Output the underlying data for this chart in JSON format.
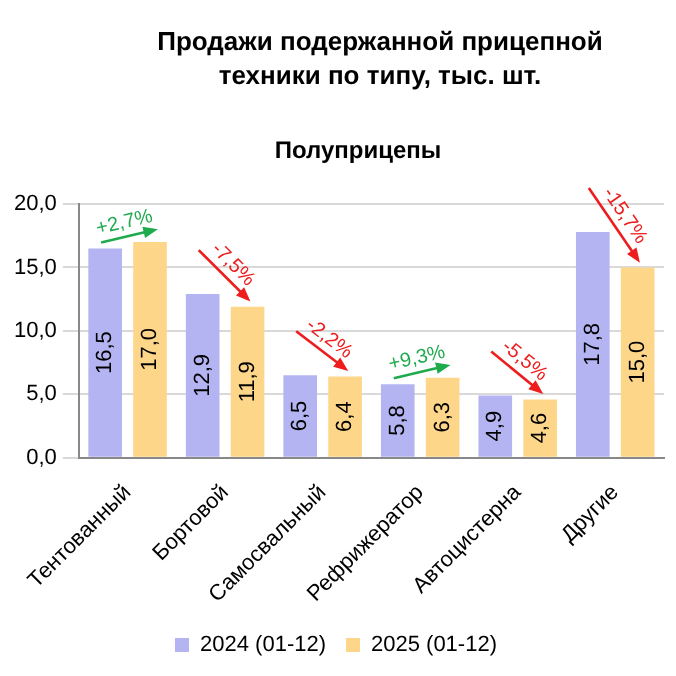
{
  "chart_data": {
    "type": "bar",
    "title": "Продажи подержанной прицепной техники по типу, тыс. шт.",
    "subtitle": "Полуприцепы",
    "categories": [
      "Тентованный",
      "Бортовой",
      "Самосвальный",
      "Рефрижератор",
      "Автоцистерна",
      "Другие"
    ],
    "series": [
      {
        "name": "2024 (01-12)",
        "color": "#b4b4f2",
        "values": [
          16.5,
          12.9,
          6.5,
          5.8,
          4.9,
          17.8
        ],
        "value_labels": [
          "16,5",
          "12,9",
          "6,5",
          "5,8",
          "4,9",
          "17,8"
        ]
      },
      {
        "name": "2025 (01-12)",
        "color": "#fdd68a",
        "values": [
          17.0,
          11.9,
          6.4,
          6.3,
          4.6,
          15.0
        ],
        "value_labels": [
          "17,0",
          "11,9",
          "6,4",
          "6,3",
          "4,6",
          "15,0"
        ]
      }
    ],
    "annotations": [
      "+2,7%",
      "-7,5%",
      "-2,2%",
      "+9,3%",
      "-5,5%",
      "-15,7%"
    ],
    "ylim": [
      0,
      20
    ],
    "yticks": [
      {
        "value": 0,
        "label": "0,0"
      },
      {
        "value": 5,
        "label": "5,0"
      },
      {
        "value": 10,
        "label": "10,0"
      },
      {
        "value": 15,
        "label": "15,0"
      },
      {
        "value": 20,
        "label": "20,0"
      }
    ],
    "grid": "y",
    "legend": "bottom"
  }
}
